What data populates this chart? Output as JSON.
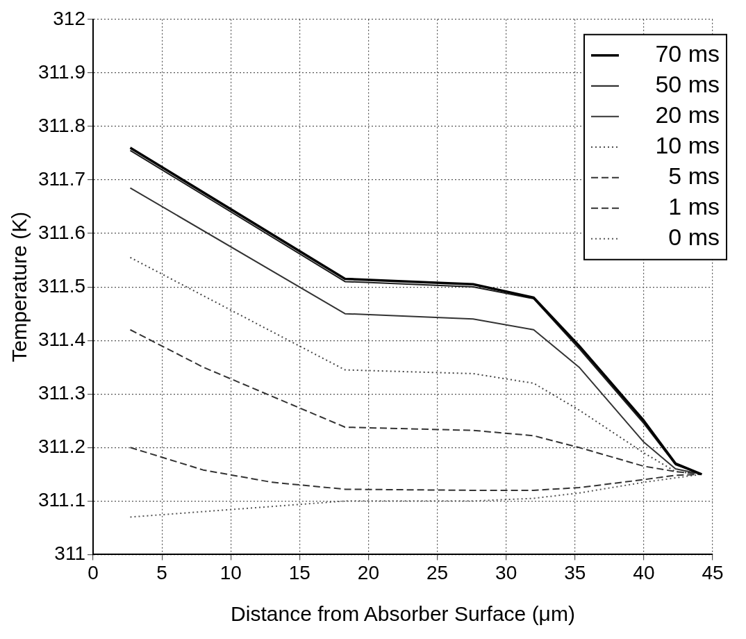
{
  "chart_data": {
    "type": "line",
    "xlabel": "Distance from Absorber Surface (μm)",
    "ylabel": "Temperature (K)",
    "xlim": [
      0,
      45
    ],
    "xticks": [
      0,
      5,
      10,
      15,
      20,
      25,
      30,
      35,
      40,
      45
    ],
    "ylim": [
      311,
      312
    ],
    "yticks": [
      {
        "value": 311,
        "label": "311"
      },
      311.1,
      311.2,
      311.3,
      311.4,
      311.5,
      311.6,
      311.7,
      311.8,
      311.9,
      {
        "value": 312,
        "label": "312"
      }
    ],
    "grid": true,
    "legend": "top right",
    "marker": "none",
    "series": [
      {
        "name": "70 ms",
        "color": "#000000",
        "line_style": "solid",
        "x": [
          2.7,
          18.3,
          27.6,
          32,
          35.3,
          40,
          42.3,
          44.2
        ],
        "values": [
          311.76,
          311.515,
          311.505,
          311.48,
          311.39,
          311.25,
          311.17,
          311.15
        ]
      },
      {
        "name": "50 ms",
        "color": "#1a1a1a",
        "line_style": "solid",
        "x": [
          2.7,
          18.3,
          27.6,
          32,
          35.3,
          40,
          42.3,
          44.2
        ],
        "values": [
          311.755,
          311.51,
          311.5,
          311.478,
          311.385,
          311.245,
          311.168,
          311.15
        ]
      },
      {
        "name": "20 ms",
        "color": "#333333",
        "line_style": "solid",
        "x": [
          2.7,
          18.3,
          27.6,
          32,
          35.3,
          40,
          42.3,
          44.2
        ],
        "values": [
          311.685,
          311.45,
          311.44,
          311.42,
          311.35,
          311.21,
          311.16,
          311.15
        ]
      },
      {
        "name": "10 ms",
        "color": "#444444",
        "line_style": "dotted",
        "x": [
          2.7,
          18.3,
          27.6,
          32,
          35.3,
          40,
          42.3,
          44.2
        ],
        "values": [
          311.555,
          311.345,
          311.338,
          311.32,
          311.27,
          311.19,
          311.155,
          311.15
        ]
      },
      {
        "name": "5 ms",
        "color": "#333333",
        "line_style": "dashed",
        "x": [
          2.7,
          8,
          18.3,
          27.6,
          32,
          35.3,
          40,
          42.3,
          44.2
        ],
        "values": [
          311.42,
          311.35,
          311.238,
          311.232,
          311.222,
          311.2,
          311.165,
          311.155,
          311.15
        ]
      },
      {
        "name": "1 ms",
        "color": "#333333",
        "line_style": "dashed",
        "x": [
          2.7,
          8,
          13,
          18.3,
          27.6,
          32,
          35.3,
          40,
          42.3,
          44.2
        ],
        "values": [
          311.2,
          311.158,
          311.135,
          311.122,
          311.12,
          311.12,
          311.125,
          311.14,
          311.148,
          311.15
        ]
      },
      {
        "name": "0 ms",
        "color": "#555555",
        "line_style": "dotted",
        "x": [
          2.7,
          18.3,
          27.6,
          32,
          35.3,
          40,
          44.2
        ],
        "values": [
          311.07,
          311.1,
          311.1,
          311.105,
          311.115,
          311.135,
          311.15
        ]
      }
    ]
  }
}
